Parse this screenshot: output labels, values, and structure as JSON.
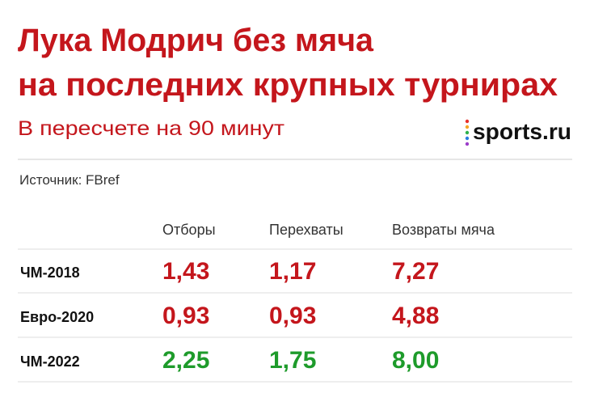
{
  "header": {
    "title": [
      "Лука Модрич без мяча",
      "на последних крупных турнирах"
    ],
    "subtitle": "В пересчете на 90 минут",
    "logo": "sports.ru",
    "source": "Источник: FBref"
  },
  "table": {
    "columns": [
      "Отборы",
      "Перехваты",
      "Возвраты мяча"
    ],
    "rows": [
      {
        "label": "ЧМ-2018",
        "color": "#c4161c",
        "cells": [
          "1,43",
          "1,17",
          "7,27"
        ]
      },
      {
        "label": "Евро-2020",
        "color": "#c4161c",
        "cells": [
          "0,93",
          "0,93",
          "4,88"
        ]
      },
      {
        "label": "ЧМ-2022",
        "color": "#1e9b2b",
        "cells": [
          "2,25",
          "1,75",
          "8,00"
        ]
      }
    ]
  }
}
